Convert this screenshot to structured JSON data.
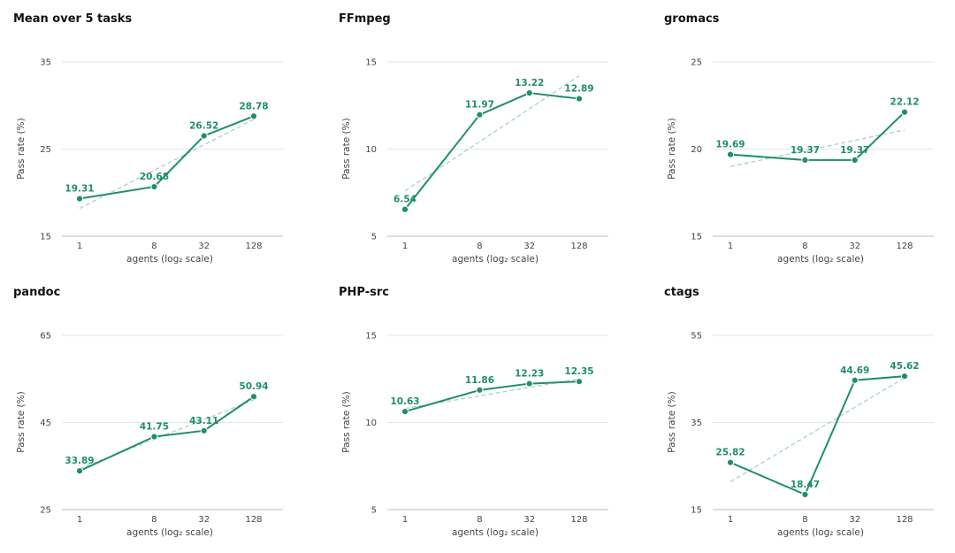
{
  "chart_data": [
    {
      "type": "line",
      "title": "Mean over 5 tasks",
      "xlabel": "agents (log₂ scale)",
      "ylabel": "Pass rate (%)",
      "x_scale": "log2",
      "x": [
        1,
        8,
        32,
        128
      ],
      "x_tick_labels": [
        "1",
        "8",
        "32",
        "128"
      ],
      "ylim": [
        15,
        35
      ],
      "y_ticks": [
        15,
        25,
        35
      ],
      "y_tick_labels": [
        "15",
        "25",
        "35"
      ],
      "series": [
        {
          "values": [
            19.31,
            20.68,
            26.52,
            28.78
          ]
        }
      ],
      "data_labels": [
        "19.31",
        "20.68",
        "26.52",
        "28.78"
      ],
      "trend_line": [
        18.2,
        28.4
      ],
      "grid": "horizontal"
    },
    {
      "type": "line",
      "title": "FFmpeg",
      "xlabel": "agents (log₂ scale)",
      "ylabel": "Pass rate (%)",
      "x_scale": "log2",
      "x": [
        1,
        8,
        32,
        128
      ],
      "x_tick_labels": [
        "1",
        "8",
        "32",
        "128"
      ],
      "ylim": [
        5,
        15
      ],
      "y_ticks": [
        5,
        10,
        15
      ],
      "y_tick_labels": [
        "5",
        "10",
        "15"
      ],
      "series": [
        {
          "values": [
            6.54,
            11.97,
            13.22,
            12.89
          ]
        }
      ],
      "data_labels": [
        "6.54",
        "11.97",
        "13.22",
        "12.89"
      ],
      "trend_line": [
        7.6,
        14.2
      ],
      "grid": "horizontal"
    },
    {
      "type": "line",
      "title": "gromacs",
      "xlabel": "agents (log₂ scale)",
      "ylabel": "Pass rate (%)",
      "x_scale": "log2",
      "x": [
        1,
        8,
        32,
        128
      ],
      "x_tick_labels": [
        "1",
        "8",
        "32",
        "128"
      ],
      "ylim": [
        15,
        25
      ],
      "y_ticks": [
        15,
        20,
        25
      ],
      "y_tick_labels": [
        "15",
        "20",
        "25"
      ],
      "series": [
        {
          "values": [
            19.69,
            19.37,
            19.37,
            22.12
          ]
        }
      ],
      "data_labels": [
        "19.69",
        "19.37",
        "19.37",
        "22.12"
      ],
      "trend_line": [
        19.0,
        21.1
      ],
      "grid": "horizontal"
    },
    {
      "type": "line",
      "title": "pandoc",
      "xlabel": "agents (log₂ scale)",
      "ylabel": "Pass rate (%)",
      "x_scale": "log2",
      "x": [
        1,
        8,
        32,
        128
      ],
      "x_tick_labels": [
        "1",
        "8",
        "32",
        "128"
      ],
      "ylim": [
        25,
        65
      ],
      "y_ticks": [
        25,
        45,
        65
      ],
      "y_tick_labels": [
        "25",
        "45",
        "65"
      ],
      "series": [
        {
          "values": [
            33.89,
            41.75,
            43.11,
            50.94
          ]
        }
      ],
      "data_labels": [
        "33.89",
        "41.75",
        "43.11",
        "50.94"
      ],
      "trend_line": [
        34.4,
        50.2
      ],
      "grid": "horizontal"
    },
    {
      "type": "line",
      "title": "PHP-src",
      "xlabel": "agents (log₂ scale)",
      "ylabel": "Pass rate (%)",
      "x_scale": "log2",
      "x": [
        1,
        8,
        32,
        128
      ],
      "x_tick_labels": [
        "1",
        "8",
        "32",
        "128"
      ],
      "ylim": [
        5,
        15
      ],
      "y_ticks": [
        5,
        10,
        15
      ],
      "y_tick_labels": [
        "5",
        "10",
        "15"
      ],
      "series": [
        {
          "values": [
            10.63,
            11.86,
            12.23,
            12.35
          ]
        }
      ],
      "data_labels": [
        "10.63",
        "11.86",
        "12.23",
        "12.35"
      ],
      "trend_line": [
        10.8,
        12.5
      ],
      "grid": "horizontal"
    },
    {
      "type": "line",
      "title": "ctags",
      "xlabel": "agents (log₂ scale)",
      "ylabel": "Pass rate (%)",
      "x_scale": "log2",
      "x": [
        1,
        8,
        32,
        128
      ],
      "x_tick_labels": [
        "1",
        "8",
        "32",
        "128"
      ],
      "ylim": [
        15,
        55
      ],
      "y_ticks": [
        15,
        35,
        55
      ],
      "y_tick_labels": [
        "15",
        "35",
        "55"
      ],
      "series": [
        {
          "values": [
            25.82,
            18.47,
            44.69,
            45.62
          ]
        }
      ],
      "data_labels": [
        "25.82",
        "18.47",
        "44.69",
        "45.62"
      ],
      "trend_line": [
        21.4,
        45.3
      ],
      "grid": "horizontal"
    }
  ],
  "colors": {
    "line": "#1f8f65",
    "trend": "#a8d5be",
    "grid": "#e6e6e6",
    "axis": "#bbbbbb"
  }
}
